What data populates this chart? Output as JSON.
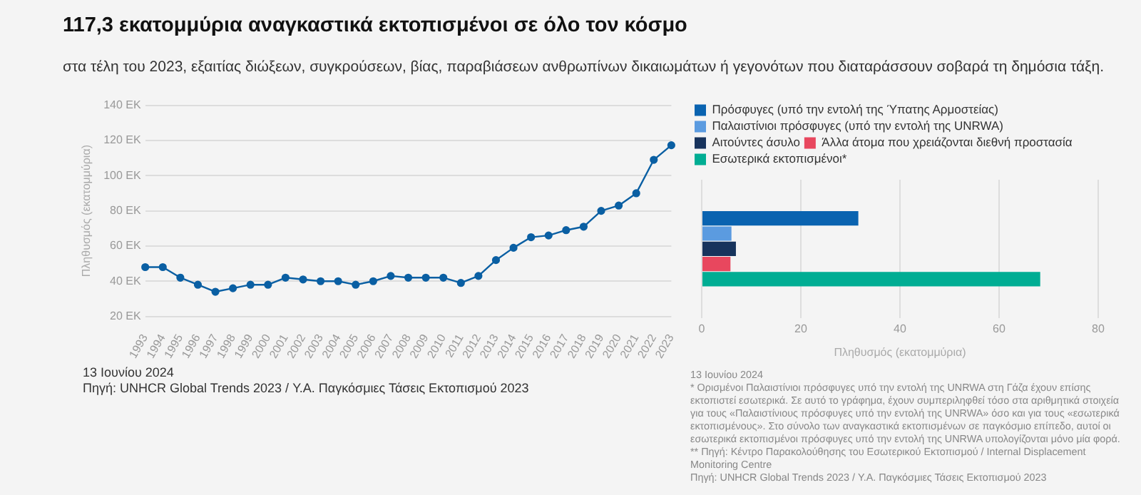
{
  "chart_data": [
    {
      "type": "line",
      "title": "117,3 εκατομμύρια αναγκαστικά εκτοπισμένοι σε όλο τον κόσμο",
      "subtitle": "στα τέλη του 2023, εξαιτίας διώξεων, συγκρούσεων, βίας, παραβιάσεων ανθρωπίνων δικαιωμάτων ή γεγονότων που διαταράσσουν σοβαρά τη δημόσια τάξη.",
      "ylabel": "Πληθυσμός (εκατομμύρια)",
      "categories": [
        "1993",
        "1994",
        "1995",
        "1996",
        "1997",
        "1998",
        "1999",
        "2000",
        "2001",
        "2002",
        "2003",
        "2004",
        "2005",
        "2006",
        "2007",
        "2008",
        "2009",
        "2010",
        "2011",
        "2012",
        "2013",
        "2014",
        "2015",
        "2016",
        "2017",
        "2018",
        "2019",
        "2020",
        "2021",
        "2022",
        "2023"
      ],
      "series": [
        {
          "color": "#0a5fa3",
          "values": [
            48,
            48,
            42,
            38,
            34,
            36,
            38,
            38,
            42,
            41,
            40,
            40,
            38,
            40,
            43,
            42,
            42,
            42,
            39,
            43,
            52,
            59,
            65,
            66,
            69,
            71,
            80,
            83,
            90,
            109,
            117.3
          ]
        }
      ],
      "ylim": [
        20,
        140
      ],
      "yticks": [
        {
          "value": 20,
          "label": "20 ΕΚ"
        },
        {
          "value": 40,
          "label": "40 ΕΚ"
        },
        {
          "value": 60,
          "label": "60 ΕΚ"
        },
        {
          "value": 80,
          "label": "80 ΕΚ"
        },
        {
          "value": 100,
          "label": "100 ΕΚ"
        },
        {
          "value": 120,
          "label": "120 ΕΚ"
        },
        {
          "value": 140,
          "label": "140 ΕΚ"
        }
      ],
      "grid": "y",
      "marker": "circle",
      "legend": false,
      "annotations": [
        "13 Ιουνίου 2024",
        "Πηγή: UNHCR Global Trends 2023 / Υ.Α. Παγκόσμιες Τάσεις Εκτοπισμού 2023"
      ]
    },
    {
      "type": "bar",
      "orientation": "horizontal",
      "xlabel": "Πληθυσμός (εκατομμύρια)",
      "categories": [
        null
      ],
      "series": [
        {
          "name": "Πρόσφυγες (υπό την εντολή της Ύπατης Αρμοστείας)",
          "color": "#0a63b0",
          "values": [
            31.6
          ]
        },
        {
          "name": "Παλαιστίνιοι πρόσφυγες (υπό την εντολή της UNRWA)",
          "color": "#5b9be0",
          "values": [
            6
          ]
        },
        {
          "name": "Αιτούντες άσυλο",
          "color": "#17335c",
          "values": [
            6.9
          ]
        },
        {
          "name": "Άλλα άτομα που χρειάζονται διεθνή προστασία",
          "color": "#e8475e",
          "values": [
            5.8
          ]
        },
        {
          "name": "Εσωτερικά εκτοπισμένοι*",
          "color": "#00ad93",
          "values": [
            68.3
          ]
        }
      ],
      "xlim": [
        0,
        80
      ],
      "xticks": [
        0,
        20,
        40,
        60,
        80
      ],
      "grid": "x",
      "legend": "top",
      "tick_labels": "x",
      "annotations": [
        "13 Ιουνίου 2024",
        "* Ορισμένοι Παλαιστίνιοι πρόσφυγες υπό την εντολή της UNRWA στη Γάζα έχουν επίσης εκτοπιστεί εσωτερικά. Σε αυτό το γράφημα, έχουν συμπεριληφθεί τόσο στα αριθμητικά στοιχεία για τους «Παλαιστίνιους πρόσφυγες υπό την εντολή της UNRWA» όσο και για τους «εσωτερικά εκτοπισμένους». Στο σύνολο των αναγκαστικά εκτοπισμένων σε παγκόσμιο επίπεδο, αυτοί οι εσωτερικά εκτοπισμένοι πρόσφυγες υπό την εντολή της UNRWA υπολογίζονται μόνο μία φορά.",
        "** Πηγή: Κέντρο Παρακολούθησης του Εσωτερικού Εκτοπισμού / Internal Displacement Monitoring Centre",
        "Πηγή: UNHCR Global Trends 2023 / Υ.Α. Παγκόσμιες Τάσεις Εκτοπισμού 2023"
      ]
    }
  ]
}
